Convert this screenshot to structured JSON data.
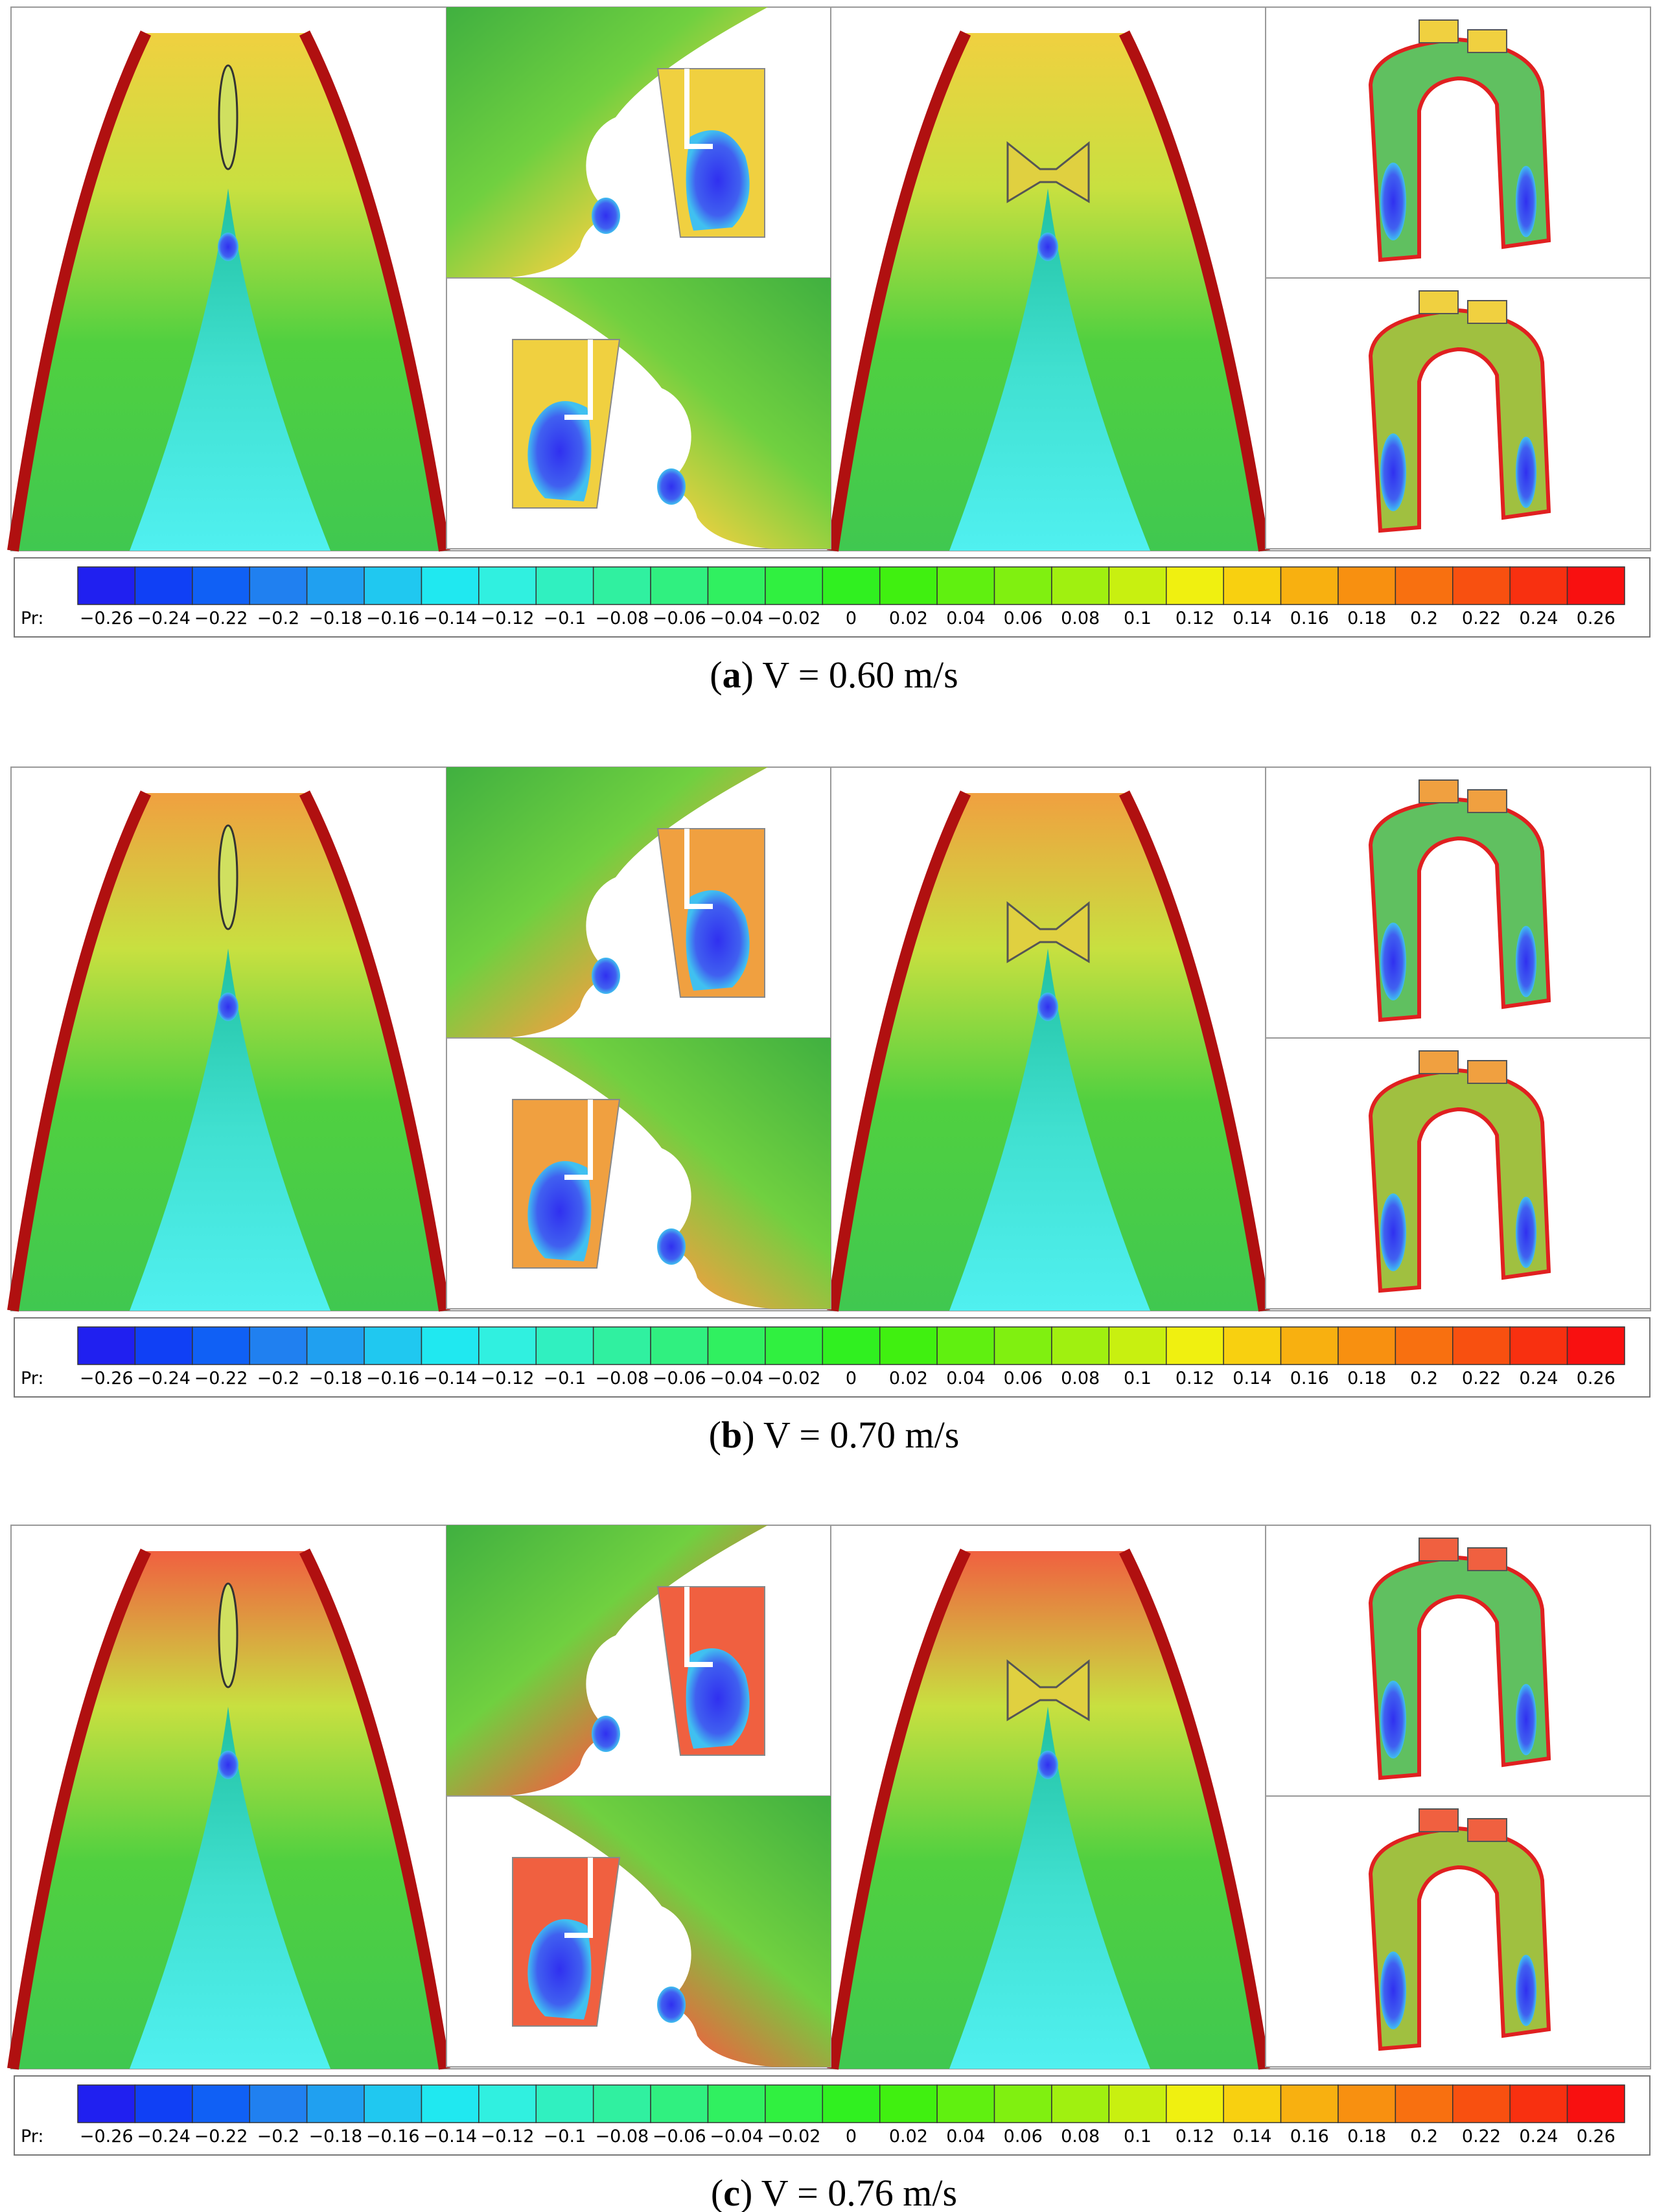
{
  "figure": {
    "colorbar": {
      "label": "Pr:",
      "ticks": [
        "−0.26",
        "−0.24",
        "−0.22",
        "−0.2",
        "−0.18",
        "−0.16",
        "−0.14",
        "−0.12",
        "−0.1",
        "−0.08",
        "−0.06",
        "−0.04",
        "−0.02",
        "0",
        "0.02",
        "0.04",
        "0.06",
        "0.08",
        "0.1",
        "0.12",
        "0.14",
        "0.16",
        "0.18",
        "0.2",
        "0.22",
        "0.24",
        "0.26"
      ],
      "colors": [
        "#2020f0",
        "#1040f5",
        "#1060f5",
        "#2080f0",
        "#20a0f0",
        "#20c8f0",
        "#20e8f0",
        "#30f0e0",
        "#30f0c0",
        "#30f0a0",
        "#30f080",
        "#30f060",
        "#30f040",
        "#30f020",
        "#40f010",
        "#60f010",
        "#80f010",
        "#a0f010",
        "#c8f010",
        "#f0f010",
        "#f8d010",
        "#f8b010",
        "#f89010",
        "#f87010",
        "#f85010",
        "#f83010",
        "#f81010"
      ]
    },
    "panels": [
      {
        "caption": [
          "(",
          "a",
          ") V = 0.60 m/s"
        ]
      },
      {
        "caption": [
          "(",
          "b",
          ") V = 0.70 m/s"
        ]
      },
      {
        "caption": [
          "(",
          "c",
          ") V = 0.76 m/s"
        ]
      }
    ]
  }
}
